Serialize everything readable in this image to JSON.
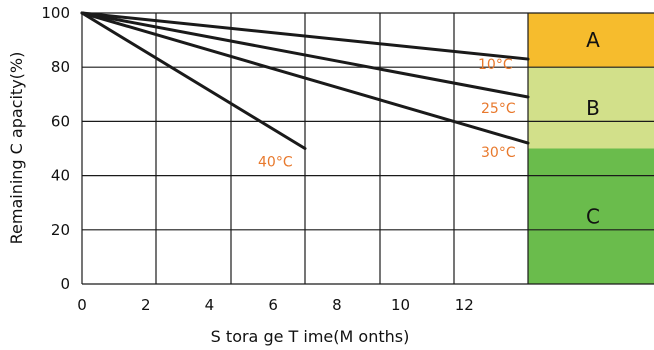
{
  "chart_data": {
    "type": "line",
    "xlabel": "S tora ge T ime(M onths)",
    "ylabel": "Remaining C apacity(%)",
    "xlim": [
      0,
      14
    ],
    "ylim": [
      0,
      100
    ],
    "xticks": [
      0,
      2,
      4,
      6,
      8,
      10,
      12
    ],
    "yticks": [
      0,
      20,
      40,
      60,
      80,
      100
    ],
    "grid": true,
    "series": [
      {
        "name": "10°C",
        "x": [
          0,
          14
        ],
        "y": [
          100,
          83
        ]
      },
      {
        "name": "25°C",
        "x": [
          0,
          14
        ],
        "y": [
          100,
          69
        ]
      },
      {
        "name": "30°C",
        "x": [
          0,
          14
        ],
        "y": [
          100,
          52
        ]
      },
      {
        "name": "40°C",
        "x": [
          0,
          7
        ],
        "y": [
          100,
          50
        ]
      }
    ],
    "zones": [
      {
        "label": "A",
        "from": 80,
        "to": 100,
        "color": "#f6bc2d"
      },
      {
        "label": "B",
        "from": 50,
        "to": 80,
        "color": "#d2e08a"
      },
      {
        "label": "C",
        "from": 0,
        "to": 50,
        "color": "#6abc4c"
      }
    ],
    "label_color": "#e8792d",
    "line_color": "#1a1a1a"
  }
}
